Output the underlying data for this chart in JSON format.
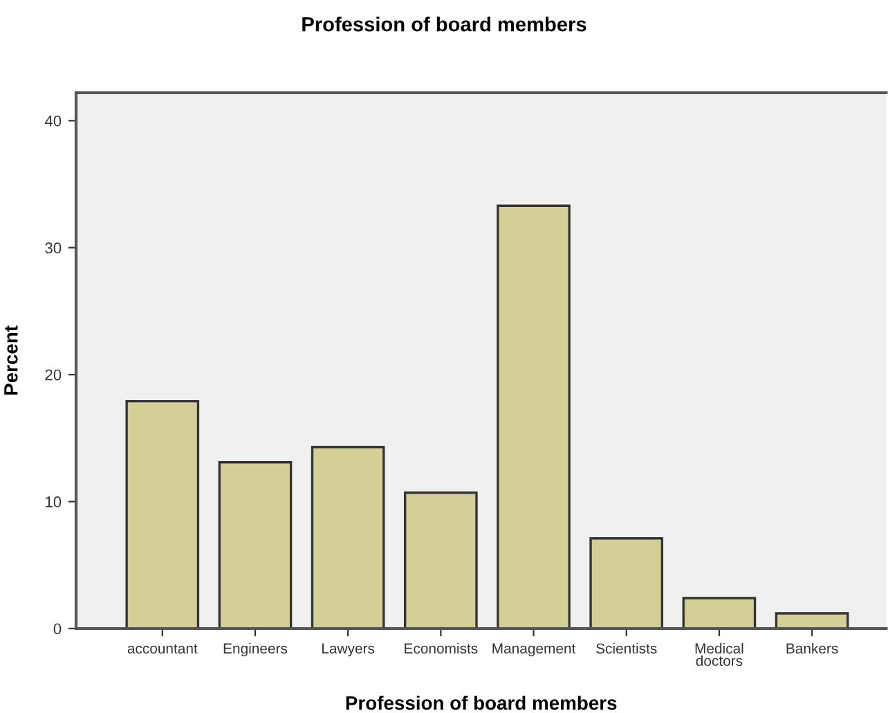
{
  "chart_data": {
    "type": "bar",
    "title": "Profession of board members",
    "xlabel": "Profession of board members",
    "ylabel": "Percent",
    "categories": [
      "accountant",
      "Engineers",
      "Lawyers",
      "Economists",
      "Management",
      "Scientists",
      "Medical\ndoctors",
      "Bankers"
    ],
    "values": [
      17.9,
      13.1,
      14.3,
      10.7,
      33.3,
      7.1,
      2.4,
      1.2
    ],
    "color": "#d3cf96",
    "ylim": [
      0,
      42.2
    ],
    "yticks": [
      0,
      10,
      20,
      30,
      40
    ],
    "grid": false,
    "legend": false
  }
}
